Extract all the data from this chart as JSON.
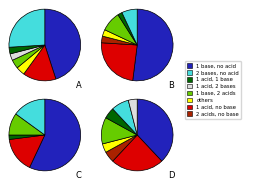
{
  "colors": {
    "1 base, no acid": "#2222bb",
    "2 bases, no acid": "#44dddd",
    "1 acid, 1 base": "#006600",
    "1 acid, 2 bases": "#dddddd",
    "1 base, 2 acids": "#66cc00",
    "others": "#ffff00",
    "1 acid, no base": "#dd0000",
    "2 acids, no base": "#aa2200"
  },
  "charts": {
    "A": {
      "label": "A",
      "slices": [
        [
          "1 base, no acid",
          45
        ],
        [
          "1 acid, no base",
          15
        ],
        [
          "others",
          4
        ],
        [
          "1 base, 2 acids",
          4
        ],
        [
          "1 acid, 2 bases",
          3
        ],
        [
          "1 acid, 1 base",
          3
        ],
        [
          "2 bases, no acid",
          26
        ]
      ],
      "startangle": 90
    },
    "B": {
      "label": "B",
      "slices": [
        [
          "1 base, no acid",
          52
        ],
        [
          "1 acid, no base",
          24
        ],
        [
          "2 acids, no base",
          3
        ],
        [
          "others",
          3
        ],
        [
          "1 base, 2 acids",
          9
        ],
        [
          "1 acid, 1 base",
          2
        ],
        [
          "2 bases, no acid",
          7
        ]
      ],
      "startangle": 90
    },
    "C": {
      "label": "C",
      "slices": [
        [
          "1 base, no acid",
          57
        ],
        [
          "1 acid, no base",
          16
        ],
        [
          "1 acid, 1 base",
          2
        ],
        [
          "1 base, 2 acids",
          10
        ],
        [
          "2 bases, no acid",
          15
        ]
      ],
      "startangle": 90
    },
    "D": {
      "label": "D",
      "slices": [
        [
          "1 base, no acid",
          38
        ],
        [
          "1 acid, no base",
          24
        ],
        [
          "2 acids, no base",
          5
        ],
        [
          "others",
          4
        ],
        [
          "1 base, 2 acids",
          12
        ],
        [
          "1 acid, 1 base",
          5
        ],
        [
          "2 bases, no acid",
          8
        ],
        [
          "1 acid, 2 bases",
          4
        ]
      ],
      "startangle": 90
    }
  },
  "legend_order": [
    "1 base, no acid",
    "2 bases, no acid",
    "1 acid, 1 base",
    "1 acid, 2 bases",
    "1 base, 2 acids",
    "others",
    "1 acid, no base",
    "2 acids, no base"
  ]
}
